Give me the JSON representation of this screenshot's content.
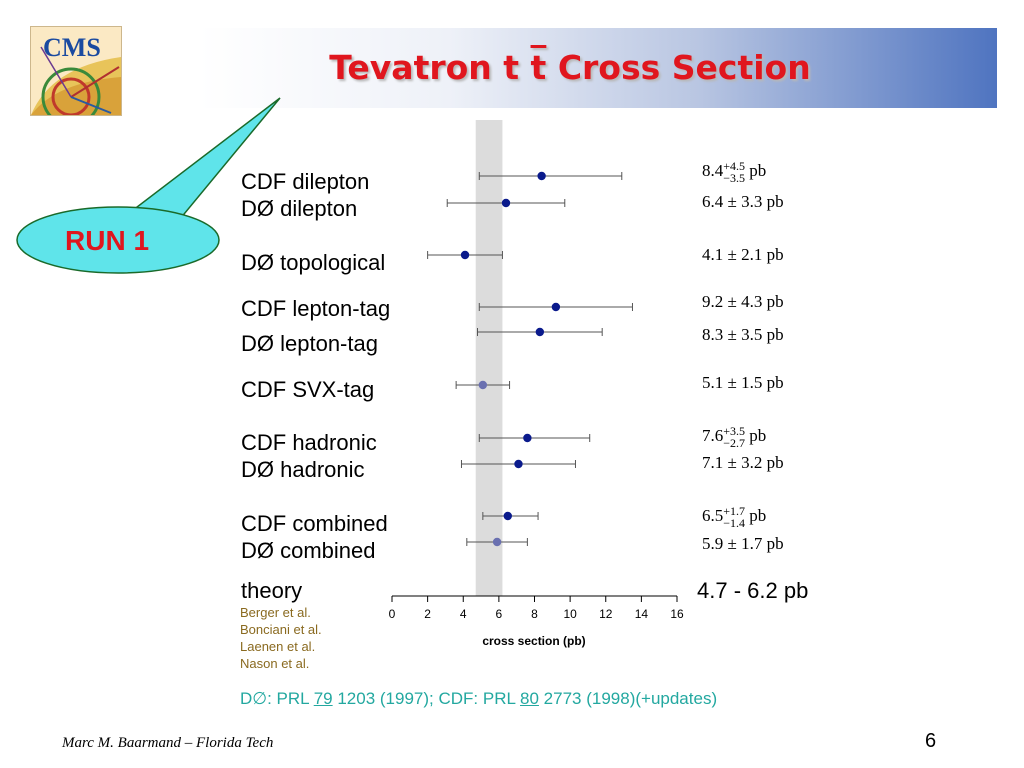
{
  "slide": {
    "title_pre": "Tevatron t ",
    "title_tbar": "t",
    "title_post": " Cross Section",
    "bubble_text": "RUN 1",
    "logo_text": "CMS",
    "author": "Marc M. Baarmand – Florida Tech",
    "page_number": "6",
    "footer": {
      "d0_label": "D∅:  PRL ",
      "d0_vol": "79",
      "d0_rest": " 1203 (1997); CDF: PRL ",
      "cdf_vol": "80",
      "cdf_rest": " 2773 (1998)(+updates)"
    }
  },
  "chart_data": {
    "type": "scatter",
    "xlabel": "cross section (pb)",
    "xlim": [
      0,
      16
    ],
    "xticks": [
      "0",
      "2",
      "4",
      "6",
      "8",
      "10",
      "12",
      "14",
      "16"
    ],
    "theory_band": [
      4.7,
      6.2
    ],
    "theory_label": "theory",
    "theory_value": "4.7 - 6.2 pb",
    "theory_refs": [
      "Berger et al.",
      "Bonciani  et al.",
      "Laenen et al.",
      "Nason et al."
    ],
    "points": [
      {
        "label": "CDF dilepton",
        "value": 8.4,
        "err_plus": 4.5,
        "err_minus": 3.5,
        "display": "8.4",
        "plus": "+4.5",
        "minus": "−3.5",
        "asym": true,
        "color": "#0a1a8c"
      },
      {
        "label": "DØ dilepton",
        "value": 6.4,
        "err_plus": 3.3,
        "err_minus": 3.3,
        "display": "6.4 ± 3.3 pb",
        "asym": false,
        "color": "#0a1a8c"
      },
      {
        "label": "DØ topological",
        "value": 4.1,
        "err_plus": 2.1,
        "err_minus": 2.1,
        "display": "4.1 ± 2.1 pb",
        "asym": false,
        "color": "#0a1a8c"
      },
      {
        "label": "CDF lepton-tag",
        "value": 9.2,
        "err_plus": 4.3,
        "err_minus": 4.3,
        "display": "9.2 ± 4.3 pb",
        "asym": false,
        "color": "#0a1a8c"
      },
      {
        "label": "DØ lepton-tag",
        "value": 8.3,
        "err_plus": 3.5,
        "err_minus": 3.5,
        "display": "8.3 ± 3.5 pb",
        "asym": false,
        "color": "#0a1a8c"
      },
      {
        "label": "CDF SVX-tag",
        "value": 5.1,
        "err_plus": 1.5,
        "err_minus": 1.5,
        "display": "5.1 ± 1.5 pb",
        "asym": false,
        "color": "#6a70b0"
      },
      {
        "label": "CDF hadronic",
        "value": 7.6,
        "err_plus": 3.5,
        "err_minus": 2.7,
        "display": "7.6",
        "plus": "+3.5",
        "minus": "−2.7",
        "asym": true,
        "color": "#0a1a8c"
      },
      {
        "label": "DØ hadronic",
        "value": 7.1,
        "err_plus": 3.2,
        "err_minus": 3.2,
        "display": "7.1 ± 3.2 pb",
        "asym": false,
        "color": "#0a1a8c"
      },
      {
        "label": "CDF combined",
        "value": 6.5,
        "err_plus": 1.7,
        "err_minus": 1.4,
        "display": "6.5",
        "plus": "+1.7",
        "minus": "−1.4",
        "asym": true,
        "color": "#0a1a8c"
      },
      {
        "label": "DØ combined",
        "value": 5.9,
        "err_plus": 1.7,
        "err_minus": 1.7,
        "display": "5.9 ± 1.7 pb",
        "asym": false,
        "color": "#6a70b0"
      }
    ]
  }
}
